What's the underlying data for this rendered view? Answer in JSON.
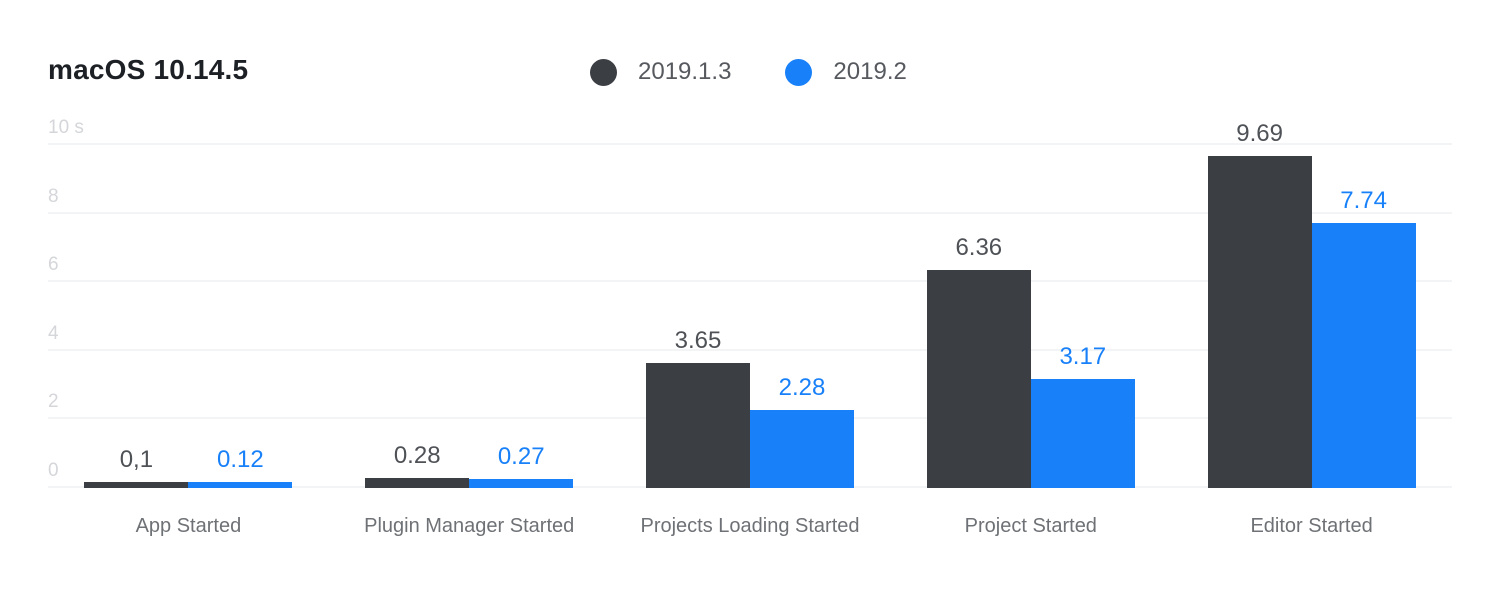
{
  "header": {
    "title": "macOS 10.14.5"
  },
  "colors": {
    "background": "#ffffff",
    "title_text": "#1d2125",
    "legend_text": "#56595e",
    "grid_line": "#f3f4f6",
    "y_tick_text": "#d5d6da",
    "x_label_text": "#6e7175",
    "series_dark": "#3b3e43",
    "series_blue": "#1880f8",
    "value_label_dark": "#4e5156",
    "value_label_blue": "#1880f8"
  },
  "chart_data": {
    "type": "bar",
    "title": "macOS 10.14.5",
    "unit": "s",
    "categories": [
      "App Started",
      "Plugin Manager Started",
      "Projects Loading Started",
      "Project Started",
      "Editor Started"
    ],
    "series": [
      {
        "name": "2019.1.3",
        "color": "#3b3e43",
        "label_color": "#4e5156",
        "values": [
          0.1,
          0.28,
          3.65,
          6.36,
          9.69
        ],
        "labels": [
          "0,1",
          "0.28",
          "3.65",
          "6.36",
          "9.69"
        ]
      },
      {
        "name": "2019.2",
        "color": "#1880f8",
        "label_color": "#1880f8",
        "values": [
          0.12,
          0.27,
          2.28,
          3.17,
          7.74
        ],
        "labels": [
          "0.12",
          "0.27",
          "2.28",
          "3.17",
          "7.74"
        ]
      }
    ],
    "y_axis": {
      "max": 10,
      "ticks": [
        0,
        2,
        4,
        6,
        8,
        10
      ],
      "tick_labels": [
        "0",
        "2",
        "4",
        "6",
        "8",
        "10 s"
      ]
    },
    "grid": true,
    "legend_position": "top-center",
    "value_labels_shown": true
  }
}
